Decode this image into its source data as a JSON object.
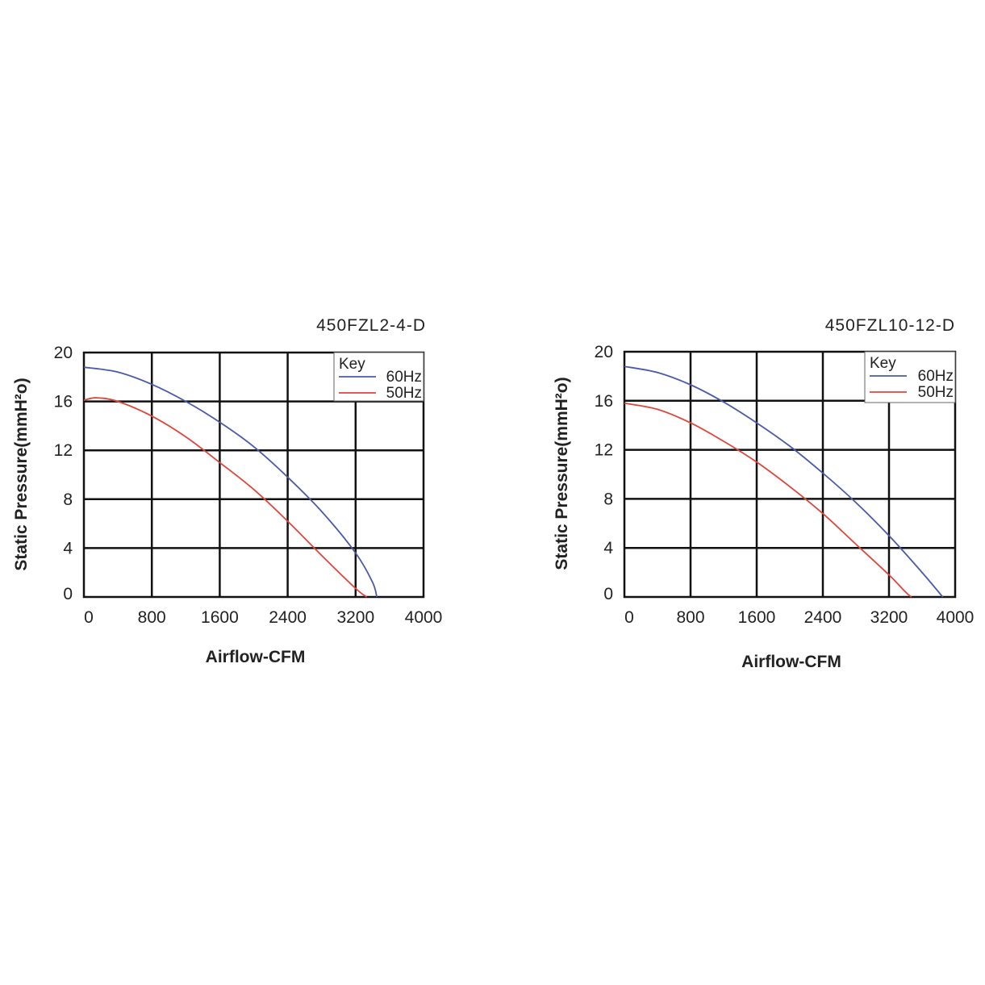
{
  "chart_data": [
    {
      "type": "line",
      "title": "450FZL2-4-D",
      "xlabel": "Airflow-CFM",
      "ylabel": "Static Pressure(mmH²o)",
      "xlim": [
        0,
        4000
      ],
      "ylim": [
        0,
        20
      ],
      "x_ticks": [
        "0",
        "800",
        "1600",
        "2400",
        "3200",
        "4000"
      ],
      "y_ticks": [
        "0",
        "4",
        "8",
        "12",
        "16",
        "20"
      ],
      "grid": true,
      "legend": {
        "title": "Key",
        "placement": "top-right"
      },
      "series": [
        {
          "name": "60Hz",
          "color": "#4a5aa8",
          "x": [
            0,
            400,
            800,
            1200,
            1600,
            2000,
            2400,
            2800,
            3200,
            3400,
            3450
          ],
          "y": [
            18.8,
            18.4,
            17.4,
            16.0,
            14.3,
            12.3,
            9.8,
            7.0,
            3.6,
            1.2,
            0
          ]
        },
        {
          "name": "50Hz",
          "color": "#e0453a",
          "x": [
            0,
            150,
            400,
            800,
            1200,
            1600,
            2000,
            2400,
            2800,
            3200,
            3330
          ],
          "y": [
            16.1,
            16.3,
            16.0,
            14.8,
            13.1,
            11.0,
            8.8,
            6.2,
            3.4,
            0.7,
            0
          ]
        }
      ]
    },
    {
      "type": "line",
      "title": "450FZL10-12-D",
      "xlabel": "Airflow-CFM",
      "ylabel": "Static Pressure(mmH²o)",
      "xlim": [
        0,
        4000
      ],
      "ylim": [
        0,
        20
      ],
      "x_ticks": [
        "0",
        "800",
        "1600",
        "2400",
        "3200",
        "4000"
      ],
      "y_ticks": [
        "0",
        "4",
        "8",
        "12",
        "16",
        "20"
      ],
      "grid": true,
      "legend": {
        "title": "Key",
        "placement": "top-right"
      },
      "series": [
        {
          "name": "60Hz",
          "color": "#4a5aa8",
          "x": [
            0,
            400,
            800,
            1200,
            1600,
            2000,
            2400,
            2800,
            3200,
            3600,
            3850
          ],
          "y": [
            18.8,
            18.3,
            17.3,
            15.9,
            14.2,
            12.3,
            10.1,
            7.7,
            5.0,
            2.0,
            0
          ]
        },
        {
          "name": "50Hz",
          "color": "#e0453a",
          "x": [
            0,
            400,
            800,
            1200,
            1600,
            2000,
            2400,
            2800,
            3200,
            3400,
            3470
          ],
          "y": [
            15.8,
            15.3,
            14.2,
            12.7,
            11.0,
            9.0,
            6.8,
            4.3,
            1.8,
            0.4,
            0
          ]
        }
      ]
    }
  ]
}
